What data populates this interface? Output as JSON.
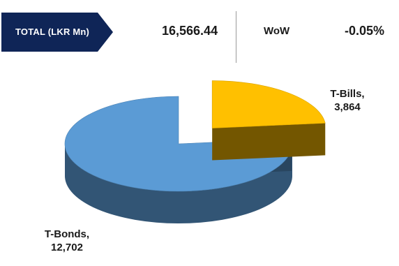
{
  "header": {
    "total_label": "TOTAL (LKR Mn)",
    "total_value": "16,566.44",
    "wow_label": "WoW",
    "wow_value": "-0.05%"
  },
  "colors": {
    "tag_bg": "#0f2557",
    "tbonds": "#5b9bd5",
    "tbills": "#ffc000"
  },
  "chart_data": {
    "type": "pie",
    "title": "",
    "slices": [
      {
        "label": "T-Bills,",
        "value_label": "3,864",
        "value": 3864,
        "color": "#ffc000",
        "exploded": true
      },
      {
        "label": "T-Bonds,",
        "value_label": "12,702",
        "value": 12702,
        "color": "#5b9bd5",
        "exploded": false
      }
    ],
    "style": "3d"
  }
}
